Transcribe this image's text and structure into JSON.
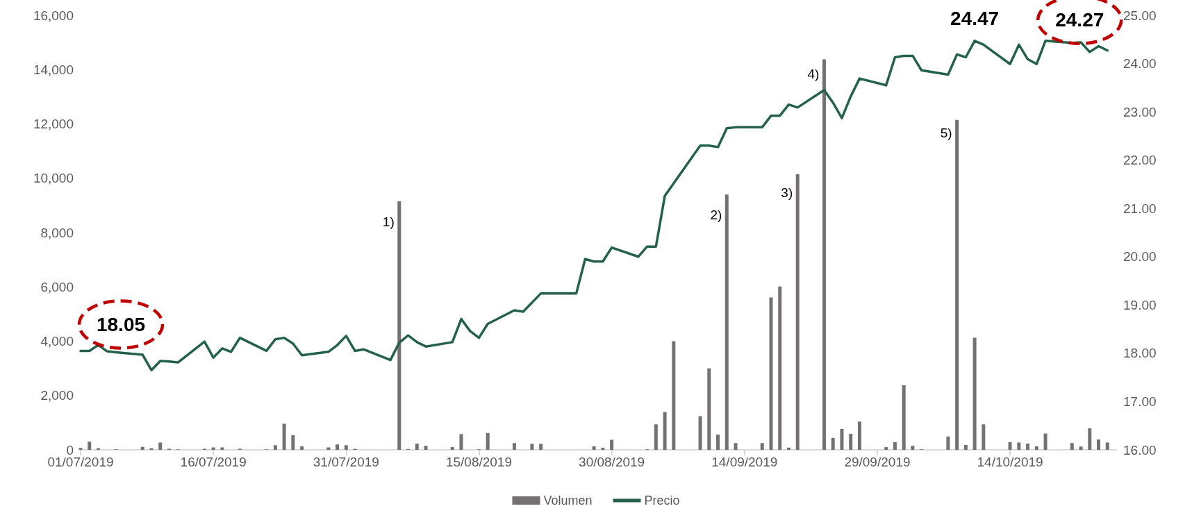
{
  "chart_data": {
    "type": "bar",
    "x": [
      "2019-07-01",
      "2019-07-02",
      "2019-07-03",
      "2019-07-04",
      "2019-07-05",
      "2019-07-08",
      "2019-07-09",
      "2019-07-10",
      "2019-07-11",
      "2019-07-12",
      "2019-07-15",
      "2019-07-16",
      "2019-07-17",
      "2019-07-18",
      "2019-07-19",
      "2019-07-22",
      "2019-07-23",
      "2019-07-24",
      "2019-07-25",
      "2019-07-26",
      "2019-07-29",
      "2019-07-30",
      "2019-07-31",
      "2019-08-01",
      "2019-08-02",
      "2019-08-05",
      "2019-08-06",
      "2019-08-07",
      "2019-08-08",
      "2019-08-09",
      "2019-08-12",
      "2019-08-13",
      "2019-08-14",
      "2019-08-15",
      "2019-08-16",
      "2019-08-19",
      "2019-08-20",
      "2019-08-21",
      "2019-08-22",
      "2019-08-23",
      "2019-08-26",
      "2019-08-27",
      "2019-08-28",
      "2019-08-29",
      "2019-08-30",
      "2019-09-02",
      "2019-09-03",
      "2019-09-04",
      "2019-09-05",
      "2019-09-06",
      "2019-09-09",
      "2019-09-10",
      "2019-09-11",
      "2019-09-12",
      "2019-09-13",
      "2019-09-16",
      "2019-09-17",
      "2019-09-18",
      "2019-09-19",
      "2019-09-20",
      "2019-09-23",
      "2019-09-24",
      "2019-09-25",
      "2019-09-26",
      "2019-09-27",
      "2019-09-30",
      "2019-10-01",
      "2019-10-02",
      "2019-10-03",
      "2019-10-04",
      "2019-10-07",
      "2019-10-08",
      "2019-10-09",
      "2019-10-10",
      "2019-10-11",
      "2019-10-14",
      "2019-10-15",
      "2019-10-16",
      "2019-10-17",
      "2019-10-18",
      "2019-10-21",
      "2019-10-22",
      "2019-10-23",
      "2019-10-24",
      "2019-10-25"
    ],
    "series": [
      {
        "name": "Volumen",
        "color": "#767171",
        "values": [
          70,
          300,
          60,
          0,
          20,
          110,
          60,
          270,
          40,
          20,
          40,
          90,
          90,
          0,
          40,
          20,
          170,
          960,
          540,
          130,
          90,
          200,
          170,
          40,
          0,
          0,
          9150,
          30,
          230,
          150,
          100,
          580,
          0,
          20,
          620,
          250,
          0,
          220,
          220,
          0,
          0,
          null,
          130,
          80,
          370,
          0,
          20,
          940,
          1390,
          4000,
          1240,
          3000,
          560,
          9400,
          250,
          250,
          5610,
          6010,
          80,
          10150,
          14380,
          440,
          770,
          590,
          1040,
          100,
          280,
          2380,
          150,
          20,
          490,
          12150,
          180,
          4130,
          940,
          280,
          270,
          230,
          130,
          600,
          250,
          120,
          790,
          380,
          270
        ]
      },
      {
        "name": "Precio",
        "type": "line",
        "axis": "y2",
        "color": "#24614b",
        "values": [
          18.05,
          18.05,
          18.17,
          18.04,
          18.02,
          17.97,
          17.65,
          17.84,
          17.83,
          17.81,
          18.24,
          17.91,
          18.1,
          18.03,
          18.32,
          18.05,
          18.29,
          18.32,
          18.2,
          17.96,
          18.03,
          18.17,
          18.36,
          18.05,
          18.08,
          17.86,
          18.22,
          18.37,
          18.23,
          18.14,
          18.23,
          18.71,
          18.46,
          18.32,
          18.61,
          18.89,
          18.86,
          19.05,
          19.24,
          19.24,
          19.24,
          19.95,
          19.9,
          19.9,
          20.19,
          20.0,
          20.21,
          20.21,
          21.26,
          21.52,
          22.3,
          22.3,
          22.27,
          22.66,
          22.68,
          22.68,
          22.92,
          22.92,
          23.15,
          23.09,
          23.45,
          23.19,
          22.87,
          23.32,
          23.69,
          23.55,
          24.13,
          24.16,
          24.16,
          23.86,
          23.77,
          24.19,
          24.13,
          24.47,
          24.39,
          23.99,
          24.39,
          24.09,
          23.99,
          24.47,
          24.43,
          24.44,
          24.24,
          24.36,
          24.27
        ],
        "value_labels": [
          "18.05",
          null,
          null,
          null,
          null,
          null,
          null,
          null,
          null,
          null,
          null,
          null,
          null,
          null,
          null,
          null,
          null,
          null,
          null,
          null,
          null,
          null,
          null,
          null,
          null,
          null,
          null,
          null,
          null,
          null,
          null,
          null,
          null,
          null,
          null,
          null,
          null,
          null,
          null,
          null,
          null,
          null,
          null,
          null,
          null,
          null,
          null,
          null,
          null,
          null,
          null,
          null,
          null,
          null,
          null,
          null,
          null,
          null,
          null,
          null,
          null,
          null,
          null,
          null,
          null,
          null,
          null,
          null,
          null,
          null,
          null,
          null,
          null,
          "24.47",
          null,
          null,
          null,
          null,
          null,
          null,
          null,
          null,
          null,
          null,
          "24.27"
        ]
      }
    ],
    "xlim": [
      "2019-07-01",
      "2019-10-26"
    ],
    "xticks": [
      {
        "value": "2019-07-01",
        "label": "01/07/2019"
      },
      {
        "value": "2019-07-16",
        "label": "16/07/2019"
      },
      {
        "value": "2019-07-31",
        "label": "31/07/2019"
      },
      {
        "value": "2019-08-15",
        "label": "15/08/2019"
      },
      {
        "value": "2019-08-30",
        "label": "30/08/2019"
      },
      {
        "value": "2019-09-14",
        "label": "14/09/2019"
      },
      {
        "value": "2019-09-29",
        "label": "29/09/2019"
      },
      {
        "value": "2019-10-14",
        "label": "14/10/2019"
      }
    ],
    "ylim": [
      0,
      16000
    ],
    "yticks": [
      {
        "value": 0,
        "label": "0"
      },
      {
        "value": 2000,
        "label": "2,000"
      },
      {
        "value": 4000,
        "label": "4,000"
      },
      {
        "value": 6000,
        "label": "6,000"
      },
      {
        "value": 8000,
        "label": "8,000"
      },
      {
        "value": 10000,
        "label": "10,000"
      },
      {
        "value": 12000,
        "label": "12,000"
      },
      {
        "value": 14000,
        "label": "14,000"
      },
      {
        "value": 16000,
        "label": "16,000"
      }
    ],
    "y2lim": [
      16,
      25
    ],
    "y2ticks": [
      {
        "value": 16,
        "label": "16.00"
      },
      {
        "value": 17,
        "label": "17.00"
      },
      {
        "value": 18,
        "label": "18.00"
      },
      {
        "value": 19,
        "label": "19.00"
      },
      {
        "value": 20,
        "label": "20.00"
      },
      {
        "value": 21,
        "label": "21.00"
      },
      {
        "value": 22,
        "label": "22.00"
      },
      {
        "value": 23,
        "label": "23.00"
      },
      {
        "value": 24,
        "label": "24.00"
      },
      {
        "value": 25,
        "label": "25.00"
      }
    ],
    "annotations": [
      {
        "text": "1)",
        "x": "2019-08-06",
        "y": 8400
      },
      {
        "text": "2)",
        "x": "2019-09-12",
        "y": 8650
      },
      {
        "text": "3)",
        "x": "2019-09-20",
        "y": 9480
      },
      {
        "text": "4)",
        "x": "2019-09-23",
        "y": 13850
      },
      {
        "text": "5)",
        "x": "2019-10-08",
        "y": 11660
      }
    ],
    "legend": "bottom",
    "grid": false,
    "marker": "none",
    "line_style": "solid"
  }
}
